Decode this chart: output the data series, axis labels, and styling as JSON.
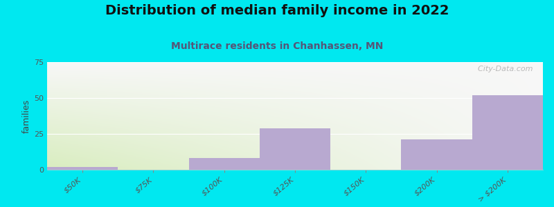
{
  "title": "Distribution of median family income in 2022",
  "subtitle": "Multirace residents in Chanhassen, MN",
  "categories": [
    "$50K",
    "$75K",
    "$100K",
    "$125K",
    "$150K",
    "$200K",
    "> $200K"
  ],
  "values": [
    2,
    0,
    8,
    29,
    0,
    21,
    52
  ],
  "bar_color": "#b8a9d0",
  "outer_background": "#00e8f0",
  "ylabel": "families",
  "ylim": [
    0,
    75
  ],
  "yticks": [
    0,
    25,
    50,
    75
  ],
  "watermark": "  City-Data.com",
  "title_fontsize": 14,
  "subtitle_fontsize": 10,
  "tick_fontsize": 8,
  "bg_topleft": [
    0.87,
    0.95,
    0.82
  ],
  "bg_topright": [
    0.97,
    0.97,
    0.97
  ],
  "bg_bottomleft": [
    0.78,
    0.93,
    0.72
  ],
  "bg_bottomright": [
    0.97,
    0.97,
    0.97
  ]
}
